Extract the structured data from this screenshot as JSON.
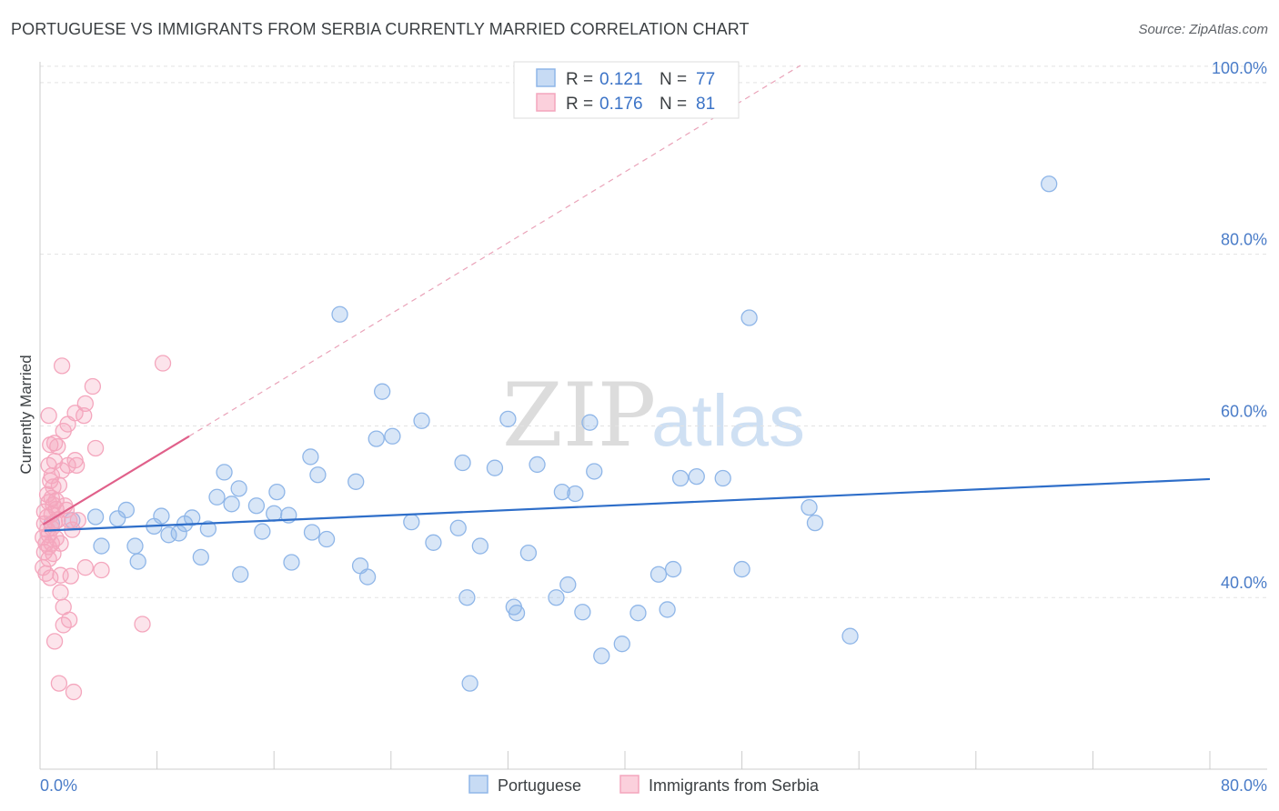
{
  "title": "PORTUGUESE VS IMMIGRANTS FROM SERBIA CURRENTLY MARRIED CORRELATION CHART",
  "source": "Source: ZipAtlas.com",
  "watermark": {
    "zip": "ZIP",
    "atlas": "atlas"
  },
  "chart_data": {
    "type": "scatter",
    "title": "PORTUGUESE VS IMMIGRANTS FROM SERBIA CURRENTLY MARRIED CORRELATION CHART",
    "xlabel": "",
    "ylabel": "Currently Married",
    "xlim": [
      0,
      80
    ],
    "ylim": [
      20,
      102
    ],
    "x_tick_labels": [
      {
        "value": 0,
        "label": "0.0%"
      },
      {
        "value": 80,
        "label": "80.0%"
      }
    ],
    "y_tick_labels": [
      {
        "value": 40,
        "label": "40.0%"
      },
      {
        "value": 60,
        "label": "60.0%"
      },
      {
        "value": 80,
        "label": "80.0%"
      },
      {
        "value": 100,
        "label": "100.0%"
      }
    ],
    "legend": [
      {
        "name": "Portuguese",
        "r_label": "R =",
        "r": "0.121",
        "n_label": "N =",
        "n": "77",
        "color": "#8fb6e8",
        "line_color": "#2e6ec9"
      },
      {
        "name": "Immigrants from Serbia",
        "r_label": "R =",
        "r": "0.176",
        "n_label": "N =",
        "n": "81",
        "color": "#f4a6bd",
        "line_color": "#e0608a"
      }
    ],
    "series": [
      {
        "name": "Portuguese",
        "color": "#8fb6e8",
        "trend": {
          "x0": 0.3,
          "y0": 47.8,
          "x1": 80,
          "y1": 53.8
        },
        "points": [
          [
            0.8,
            48.6
          ],
          [
            2.2,
            49.0
          ],
          [
            3.8,
            49.4
          ],
          [
            4.2,
            46.0
          ],
          [
            5.3,
            49.2
          ],
          [
            5.9,
            50.2
          ],
          [
            6.5,
            46.0
          ],
          [
            6.7,
            44.2
          ],
          [
            7.8,
            48.3
          ],
          [
            8.3,
            49.5
          ],
          [
            8.8,
            47.3
          ],
          [
            9.5,
            47.5
          ],
          [
            9.9,
            48.6
          ],
          [
            10.4,
            49.3
          ],
          [
            11.0,
            44.7
          ],
          [
            11.5,
            48.0
          ],
          [
            12.1,
            51.7
          ],
          [
            12.6,
            54.6
          ],
          [
            13.1,
            50.9
          ],
          [
            13.6,
            52.7
          ],
          [
            13.7,
            42.7
          ],
          [
            14.8,
            50.7
          ],
          [
            15.2,
            47.7
          ],
          [
            16.0,
            49.8
          ],
          [
            16.2,
            52.3
          ],
          [
            17.0,
            49.6
          ],
          [
            17.2,
            44.1
          ],
          [
            18.5,
            56.4
          ],
          [
            18.6,
            47.6
          ],
          [
            19.0,
            54.3
          ],
          [
            19.6,
            46.8
          ],
          [
            20.5,
            73.0
          ],
          [
            21.6,
            53.5
          ],
          [
            21.9,
            43.7
          ],
          [
            22.4,
            42.4
          ],
          [
            23.0,
            58.5
          ],
          [
            23.4,
            64.0
          ],
          [
            24.1,
            58.8
          ],
          [
            25.4,
            48.8
          ],
          [
            26.1,
            60.6
          ],
          [
            26.9,
            46.4
          ],
          [
            28.6,
            48.1
          ],
          [
            28.9,
            55.7
          ],
          [
            29.2,
            40.0
          ],
          [
            29.4,
            30.0
          ],
          [
            30.1,
            46.0
          ],
          [
            31.1,
            55.1
          ],
          [
            32.0,
            60.8
          ],
          [
            32.4,
            38.9
          ],
          [
            32.6,
            38.2
          ],
          [
            33.4,
            45.2
          ],
          [
            34.0,
            55.5
          ],
          [
            35.3,
            40.0
          ],
          [
            35.7,
            52.3
          ],
          [
            36.1,
            41.5
          ],
          [
            36.6,
            52.1
          ],
          [
            37.1,
            38.3
          ],
          [
            37.6,
            60.4
          ],
          [
            37.9,
            54.7
          ],
          [
            38.4,
            33.2
          ],
          [
            39.8,
            34.6
          ],
          [
            40.9,
            38.2
          ],
          [
            42.3,
            42.7
          ],
          [
            42.9,
            38.6
          ],
          [
            43.3,
            43.3
          ],
          [
            43.8,
            53.9
          ],
          [
            44.9,
            54.1
          ],
          [
            46.7,
            53.9
          ],
          [
            48.0,
            43.3
          ],
          [
            48.5,
            72.6
          ],
          [
            52.6,
            50.5
          ],
          [
            53.0,
            48.7
          ],
          [
            55.4,
            35.5
          ],
          [
            69.0,
            88.2
          ]
        ]
      },
      {
        "name": "Immigrants from Serbia",
        "color": "#f4a6bd",
        "trend": {
          "x0": 0.2,
          "y0": 48.5,
          "x1": 10.2,
          "y1": 58.8
        },
        "dashed": {
          "x0": 10.2,
          "y0": 58.8,
          "x1": 52.0,
          "y1": 102.0
        },
        "points": [
          [
            0.2,
            47.0
          ],
          [
            0.2,
            43.5
          ],
          [
            0.3,
            45.3
          ],
          [
            0.3,
            48.6
          ],
          [
            0.3,
            50.0
          ],
          [
            0.4,
            42.8
          ],
          [
            0.4,
            46.3
          ],
          [
            0.5,
            47.9
          ],
          [
            0.5,
            49.4
          ],
          [
            0.5,
            52.0
          ],
          [
            0.6,
            44.5
          ],
          [
            0.6,
            45.9
          ],
          [
            0.6,
            47.3
          ],
          [
            0.6,
            51.1
          ],
          [
            0.6,
            55.4
          ],
          [
            0.6,
            61.2
          ],
          [
            0.7,
            53.6
          ],
          [
            0.7,
            57.8
          ],
          [
            0.7,
            42.3
          ],
          [
            0.8,
            46.3
          ],
          [
            0.8,
            48.1
          ],
          [
            0.8,
            49.7
          ],
          [
            0.8,
            51.6
          ],
          [
            0.8,
            54.2
          ],
          [
            0.9,
            45.1
          ],
          [
            0.9,
            50.8
          ],
          [
            0.9,
            52.9
          ],
          [
            1.0,
            55.9
          ],
          [
            1.0,
            48.8
          ],
          [
            1.0,
            34.9
          ],
          [
            1.0,
            58.0
          ],
          [
            1.1,
            46.9
          ],
          [
            1.1,
            50.3
          ],
          [
            1.1,
            51.3
          ],
          [
            1.2,
            49.0
          ],
          [
            1.2,
            57.6
          ],
          [
            1.3,
            30.0
          ],
          [
            1.3,
            53.1
          ],
          [
            1.4,
            42.6
          ],
          [
            1.4,
            40.6
          ],
          [
            1.4,
            46.3
          ],
          [
            1.5,
            67.0
          ],
          [
            1.5,
            54.8
          ],
          [
            1.6,
            59.4
          ],
          [
            1.6,
            38.9
          ],
          [
            1.6,
            36.8
          ],
          [
            1.7,
            50.7
          ],
          [
            1.8,
            50.2
          ],
          [
            1.9,
            60.2
          ],
          [
            1.9,
            55.4
          ],
          [
            2.0,
            49.0
          ],
          [
            2.0,
            37.4
          ],
          [
            2.1,
            42.5
          ],
          [
            2.2,
            47.9
          ],
          [
            2.3,
            29.0
          ],
          [
            2.4,
            61.5
          ],
          [
            2.4,
            56.0
          ],
          [
            2.5,
            55.4
          ],
          [
            2.6,
            49.0
          ],
          [
            3.0,
            61.2
          ],
          [
            3.1,
            62.6
          ],
          [
            3.1,
            43.5
          ],
          [
            3.6,
            64.6
          ],
          [
            3.8,
            57.4
          ],
          [
            4.2,
            43.2
          ],
          [
            7.0,
            36.9
          ],
          [
            8.4,
            67.3
          ]
        ]
      }
    ]
  }
}
